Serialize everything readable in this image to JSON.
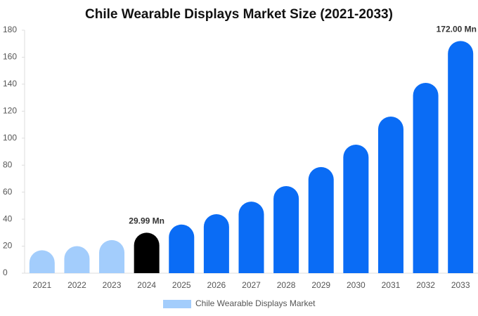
{
  "chart_data": {
    "type": "bar",
    "title": "Chile Wearable Displays Market Size (2021-2033)",
    "categories": [
      "2021",
      "2022",
      "2023",
      "2024",
      "2025",
      "2026",
      "2027",
      "2028",
      "2029",
      "2030",
      "2031",
      "2032",
      "2033"
    ],
    "series": [
      {
        "name": "Chile Wearable Displays Market",
        "color": "#a3cdfc",
        "values": [
          17,
          20,
          24.5,
          29.99,
          36,
          43.7,
          53,
          64.5,
          78.6,
          95.2,
          116,
          141,
          172
        ],
        "value_labels": [
          null,
          null,
          null,
          "29.99 Mn",
          null,
          null,
          null,
          null,
          null,
          null,
          null,
          null,
          "172.00 Mn"
        ],
        "bar_colors": [
          "#a3cdfc",
          "#a3cdfc",
          "#a3cdfc",
          "#000000",
          "#0a6cf5",
          "#0a6cf5",
          "#0a6cf5",
          "#0a6cf5",
          "#0a6cf5",
          "#0a6cf5",
          "#0a6cf5",
          "#0a6cf5",
          "#0a6cf5"
        ]
      }
    ],
    "ylim": [
      0,
      180
    ],
    "yticks": [
      0,
      20,
      40,
      60,
      80,
      100,
      120,
      140,
      160,
      180
    ],
    "grid": false,
    "legend": "bottom"
  }
}
